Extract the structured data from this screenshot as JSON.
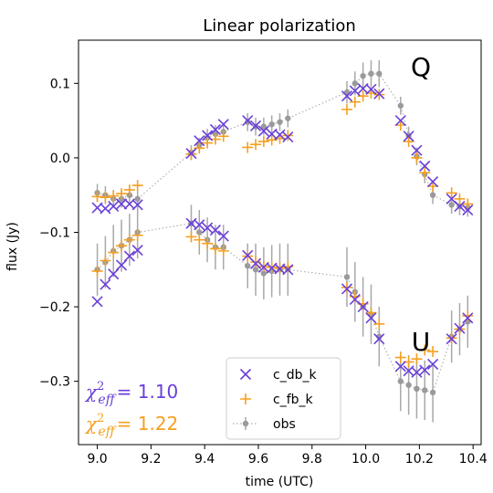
{
  "chart_data": {
    "type": "scatter",
    "title": "Linear polarization",
    "xlabel": "time (UTC)",
    "ylabel": "flux (Jy)",
    "xlim": [
      8.93,
      10.43
    ],
    "ylim": [
      -0.385,
      0.158
    ],
    "xticks": [
      9.0,
      9.2,
      9.4,
      9.6,
      9.8,
      10.0,
      10.2,
      10.4
    ],
    "xtick_labels": [
      "9.0",
      "9.2",
      "9.4",
      "9.6",
      "9.8",
      "10.0",
      "10.2",
      "10.4"
    ],
    "yticks": [
      0.1,
      0.0,
      -0.1,
      -0.2,
      -0.3
    ],
    "ytick_labels": [
      "0.1",
      "0.0",
      "−0.1",
      "−0.2",
      "−0.3"
    ],
    "grid": false,
    "legend_position": "bottom-center",
    "panel_labels": [
      "Q",
      "U"
    ],
    "annotations": [
      {
        "symbol": "χ",
        "sup": "2",
        "sub": "eff",
        "text": "= 1.10",
        "color": "#6a3fd9"
      },
      {
        "symbol": "χ",
        "sup": "2",
        "sub": "eff",
        "text": "= 1.22",
        "color": "#f5a020"
      }
    ],
    "series": [
      {
        "name": "c_db_k",
        "marker": "x",
        "color": "#6a3fd9",
        "Q": {
          "x": [
            9.0,
            9.03,
            9.06,
            9.09,
            9.12,
            9.15,
            9.35,
            9.38,
            9.41,
            9.44,
            9.47,
            9.56,
            9.59,
            9.62,
            9.65,
            9.68,
            9.71,
            9.93,
            9.96,
            9.99,
            10.02,
            10.05,
            10.13,
            10.16,
            10.19,
            10.22,
            10.25,
            10.32,
            10.35,
            10.38
          ],
          "y": [
            -0.067,
            -0.068,
            -0.065,
            -0.062,
            -0.062,
            -0.063,
            0.006,
            0.023,
            0.03,
            0.038,
            0.045,
            0.05,
            0.043,
            0.036,
            0.032,
            0.031,
            0.028,
            0.083,
            0.09,
            0.093,
            0.092,
            0.086,
            0.05,
            0.029,
            0.01,
            -0.011,
            -0.032,
            -0.055,
            -0.065,
            -0.07
          ]
        },
        "U": {
          "x": [
            9.0,
            9.03,
            9.06,
            9.09,
            9.12,
            9.15,
            9.35,
            9.38,
            9.41,
            9.44,
            9.47,
            9.56,
            9.59,
            9.62,
            9.65,
            9.68,
            9.71,
            9.93,
            9.96,
            9.99,
            10.02,
            10.05,
            10.13,
            10.16,
            10.19,
            10.22,
            10.25,
            10.32,
            10.35,
            10.38
          ],
          "y": [
            -0.193,
            -0.17,
            -0.156,
            -0.144,
            -0.132,
            -0.124,
            -0.088,
            -0.09,
            -0.094,
            -0.097,
            -0.105,
            -0.131,
            -0.142,
            -0.147,
            -0.148,
            -0.149,
            -0.15,
            -0.176,
            -0.19,
            -0.2,
            -0.215,
            -0.243,
            -0.28,
            -0.286,
            -0.288,
            -0.285,
            -0.277,
            -0.243,
            -0.229,
            -0.215
          ]
        }
      },
      {
        "name": "c_fb_k",
        "marker": "+",
        "color": "#f5a020",
        "Q": {
          "x": [
            9.0,
            9.03,
            9.06,
            9.09,
            9.12,
            9.15,
            9.35,
            9.38,
            9.41,
            9.44,
            9.47,
            9.56,
            9.59,
            9.62,
            9.65,
            9.68,
            9.71,
            9.93,
            9.96,
            9.99,
            10.02,
            10.05,
            10.13,
            10.16,
            10.19,
            10.22,
            10.25,
            10.32,
            10.35,
            10.38
          ],
          "y": [
            -0.052,
            -0.053,
            -0.051,
            -0.048,
            -0.043,
            -0.037,
            0.005,
            0.013,
            0.02,
            0.025,
            0.029,
            0.014,
            0.018,
            0.022,
            0.024,
            0.026,
            0.03,
            0.065,
            0.075,
            0.083,
            0.087,
            0.085,
            0.044,
            0.022,
            0.0,
            -0.02,
            -0.038,
            -0.047,
            -0.055,
            -0.062
          ]
        },
        "U": {
          "x": [
            9.0,
            9.03,
            9.06,
            9.09,
            9.12,
            9.15,
            9.35,
            9.38,
            9.41,
            9.44,
            9.47,
            9.56,
            9.59,
            9.62,
            9.65,
            9.68,
            9.71,
            9.93,
            9.96,
            9.99,
            10.02,
            10.05,
            10.13,
            10.16,
            10.19,
            10.22,
            10.25,
            10.32,
            10.35,
            10.38
          ],
          "y": [
            -0.152,
            -0.138,
            -0.127,
            -0.118,
            -0.11,
            -0.104,
            -0.106,
            -0.11,
            -0.115,
            -0.122,
            -0.125,
            -0.132,
            -0.14,
            -0.146,
            -0.147,
            -0.148,
            -0.146,
            -0.174,
            -0.186,
            -0.196,
            -0.208,
            -0.223,
            -0.268,
            -0.274,
            -0.27,
            -0.258,
            -0.26,
            -0.242,
            -0.23,
            -0.212
          ]
        }
      },
      {
        "name": "obs",
        "marker": "o",
        "color": "#9a9a9a",
        "line": "dotted",
        "errorbars": true,
        "Q": {
          "x": [
            9.0,
            9.03,
            9.06,
            9.09,
            9.12,
            9.15,
            9.35,
            9.38,
            9.41,
            9.44,
            9.47,
            9.56,
            9.59,
            9.62,
            9.65,
            9.68,
            9.71,
            9.93,
            9.96,
            9.99,
            10.02,
            10.05,
            10.13,
            10.16,
            10.19,
            10.22,
            10.25,
            10.32,
            10.35,
            10.38
          ],
          "y": [
            -0.047,
            -0.05,
            -0.055,
            -0.055,
            -0.05,
            -0.055,
            0.007,
            0.017,
            0.027,
            0.032,
            0.035,
            0.048,
            0.042,
            0.042,
            0.045,
            0.048,
            0.053,
            0.088,
            0.1,
            0.11,
            0.113,
            0.113,
            0.07,
            0.03,
            0.002,
            -0.022,
            -0.05,
            -0.063,
            -0.065,
            -0.067
          ],
          "err": [
            0.012,
            0.012,
            0.012,
            0.012,
            0.012,
            0.012,
            0.01,
            0.01,
            0.012,
            0.012,
            0.012,
            0.012,
            0.012,
            0.012,
            0.012,
            0.012,
            0.012,
            0.015,
            0.016,
            0.018,
            0.018,
            0.018,
            0.012,
            0.012,
            0.012,
            0.012,
            0.012,
            0.012,
            0.012,
            0.012
          ]
        },
        "U": {
          "x": [
            9.0,
            9.03,
            9.06,
            9.09,
            9.12,
            9.15,
            9.35,
            9.38,
            9.41,
            9.44,
            9.47,
            9.56,
            9.59,
            9.62,
            9.65,
            9.68,
            9.71,
            9.93,
            9.96,
            9.99,
            10.02,
            10.05,
            10.13,
            10.16,
            10.19,
            10.22,
            10.25,
            10.32,
            10.35,
            10.38
          ],
          "y": [
            -0.15,
            -0.14,
            -0.125,
            -0.118,
            -0.11,
            -0.1,
            -0.088,
            -0.1,
            -0.11,
            -0.12,
            -0.12,
            -0.145,
            -0.15,
            -0.155,
            -0.152,
            -0.15,
            -0.15,
            -0.16,
            -0.18,
            -0.2,
            -0.21,
            -0.24,
            -0.3,
            -0.305,
            -0.31,
            -0.312,
            -0.315,
            -0.24,
            -0.23,
            -0.22
          ],
          "err": [
            0.035,
            0.035,
            0.035,
            0.035,
            0.035,
            0.035,
            0.025,
            0.03,
            0.03,
            0.03,
            0.03,
            0.03,
            0.035,
            0.035,
            0.035,
            0.035,
            0.035,
            0.04,
            0.04,
            0.04,
            0.04,
            0.04,
            0.04,
            0.04,
            0.04,
            0.04,
            0.04,
            0.035,
            0.035,
            0.035
          ]
        }
      }
    ]
  }
}
